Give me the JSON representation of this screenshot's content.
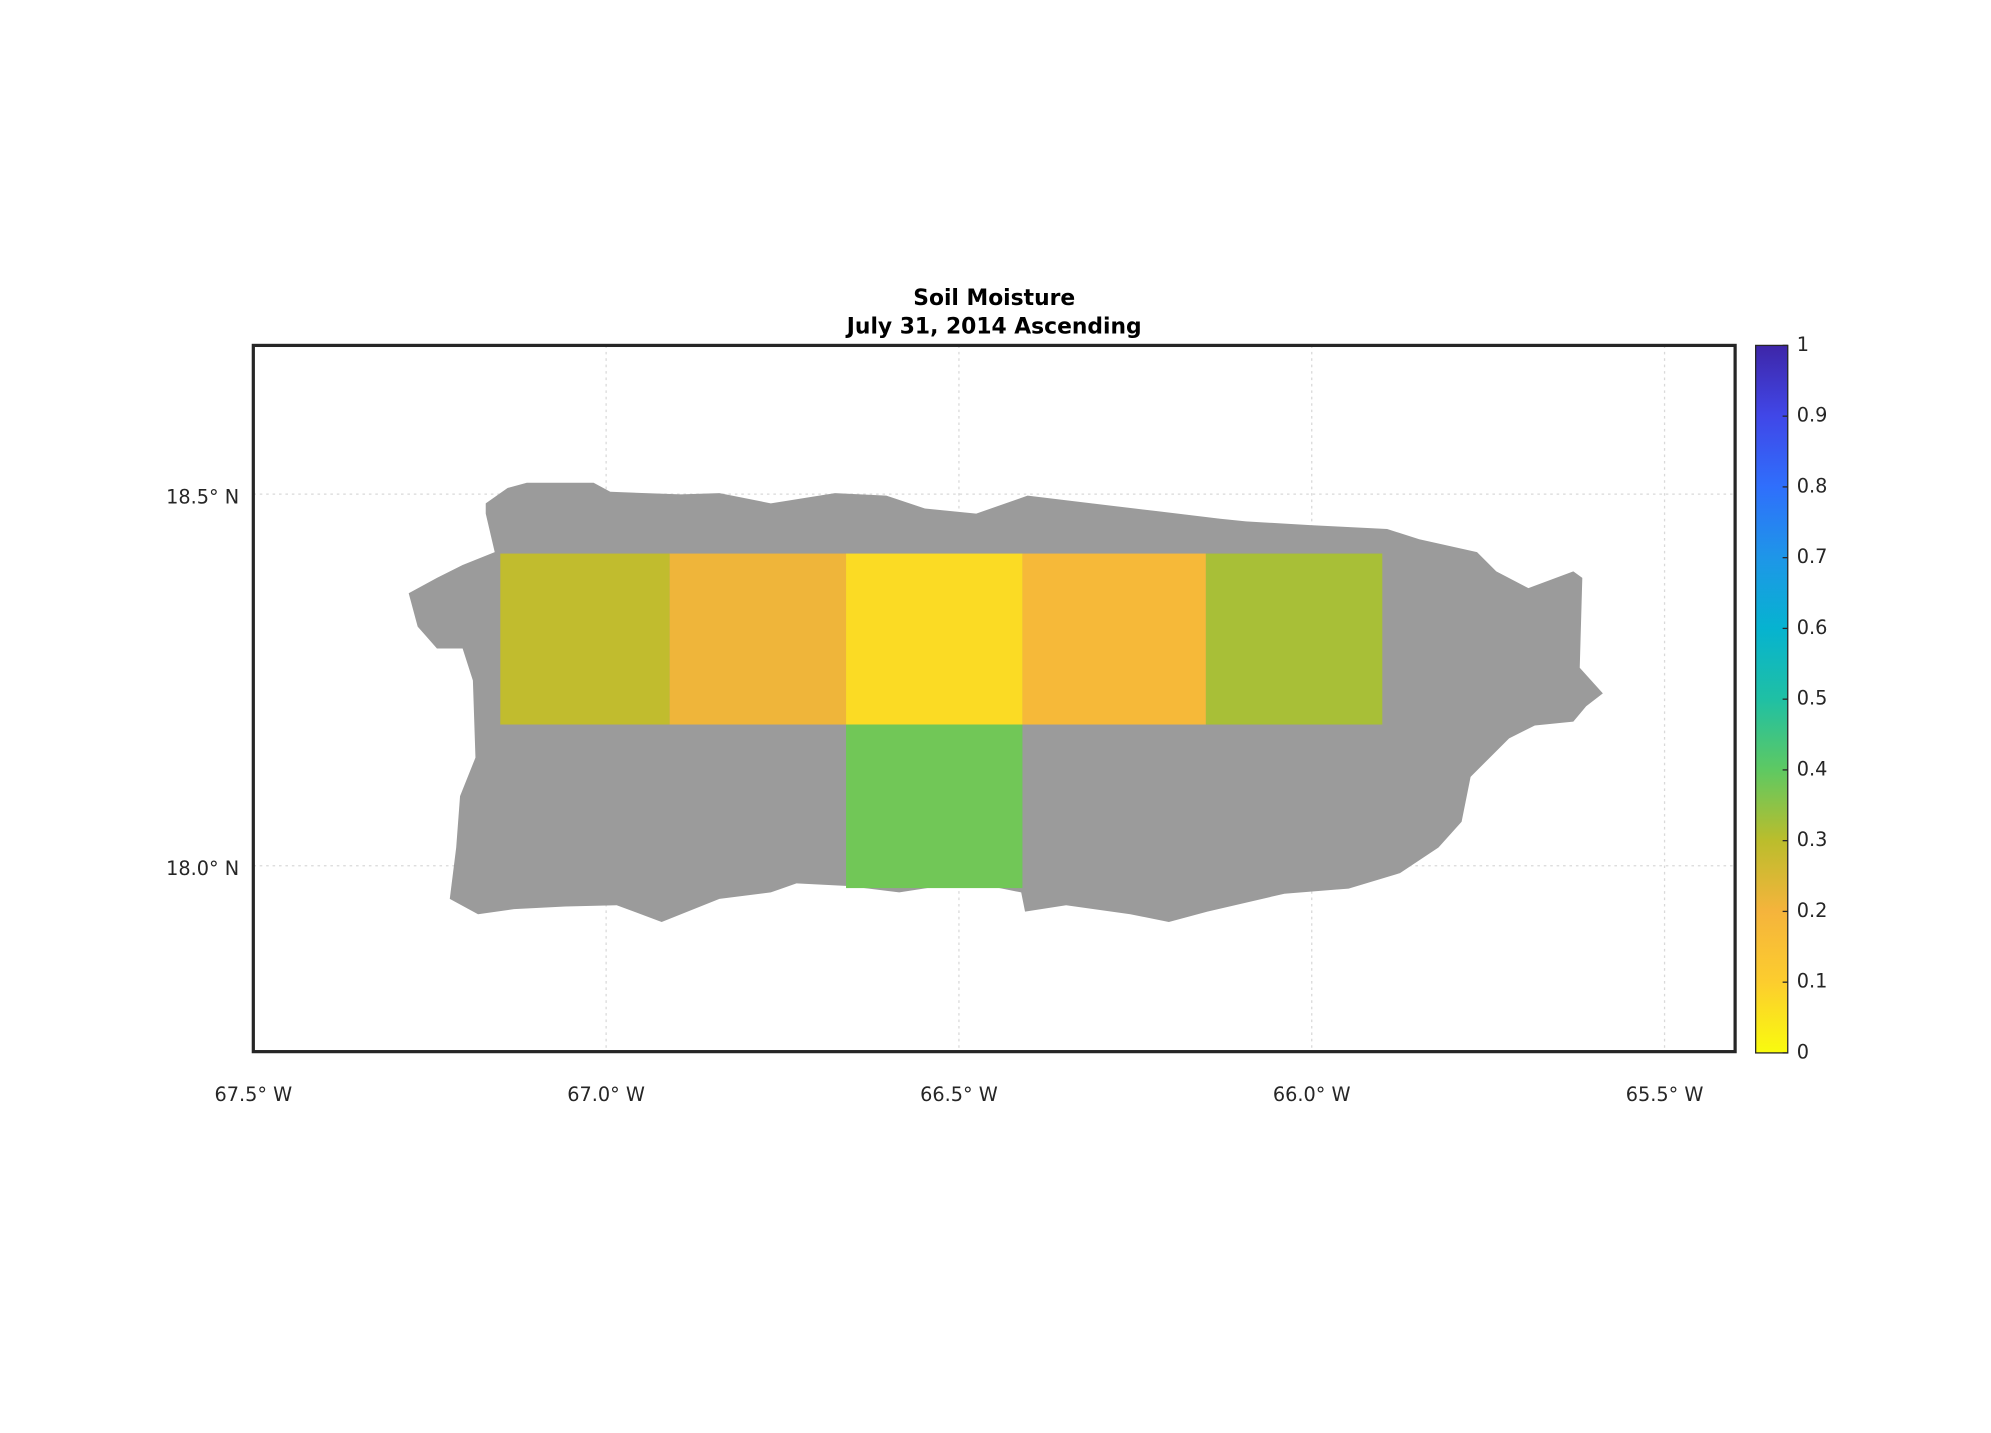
{
  "chart_data": {
    "type": "grid-map",
    "title": "Soil Moisture",
    "subtitle": "July 31, 2014 Ascending",
    "xlim": [
      -67.5,
      -65.4
    ],
    "ylim": [
      17.75,
      18.7
    ],
    "xticks": [
      {
        "value": -67.5,
        "label": "67.5° W"
      },
      {
        "value": -67.0,
        "label": "67.0° W"
      },
      {
        "value": -66.5,
        "label": "66.5° W"
      },
      {
        "value": -66.0,
        "label": "66.0° W"
      },
      {
        "value": -65.5,
        "label": "65.5° W"
      }
    ],
    "yticks": [
      {
        "value": 18.0,
        "label": "18.0° N"
      },
      {
        "value": 18.5,
        "label": "18.5° N"
      }
    ],
    "grid": true,
    "land_color": "#9b9b9b",
    "cells": [
      {
        "lon": [
          -67.15,
          -66.91
        ],
        "lat": [
          18.19,
          18.42
        ],
        "value": 0.29
      },
      {
        "lon": [
          -66.91,
          -66.66
        ],
        "lat": [
          18.19,
          18.42
        ],
        "value": 0.21
      },
      {
        "lon": [
          -66.66,
          -66.41
        ],
        "lat": [
          18.19,
          18.42
        ],
        "value": 0.07
      },
      {
        "lon": [
          -66.41,
          -66.15
        ],
        "lat": [
          18.19,
          18.42
        ],
        "value": 0.18
      },
      {
        "lon": [
          -66.15,
          -65.9
        ],
        "lat": [
          18.19,
          18.42
        ],
        "value": 0.32
      },
      {
        "lon": [
          -66.66,
          -66.41
        ],
        "lat": [
          17.97,
          18.19
        ],
        "value": 0.38
      }
    ],
    "clim": [
      0,
      1
    ],
    "colorbar_ticks": [
      0,
      0.1,
      0.2,
      0.3,
      0.4,
      0.5,
      0.6,
      0.7,
      0.8,
      0.9,
      1
    ],
    "colormap": [
      "#f9fb0e",
      "#fccd2e",
      "#f5b43c",
      "#bbbd2c",
      "#5ec962",
      "#1fc0a4",
      "#06b3d0",
      "#1e96e8",
      "#2f6ffc",
      "#4047e8",
      "#3e26a8"
    ]
  }
}
